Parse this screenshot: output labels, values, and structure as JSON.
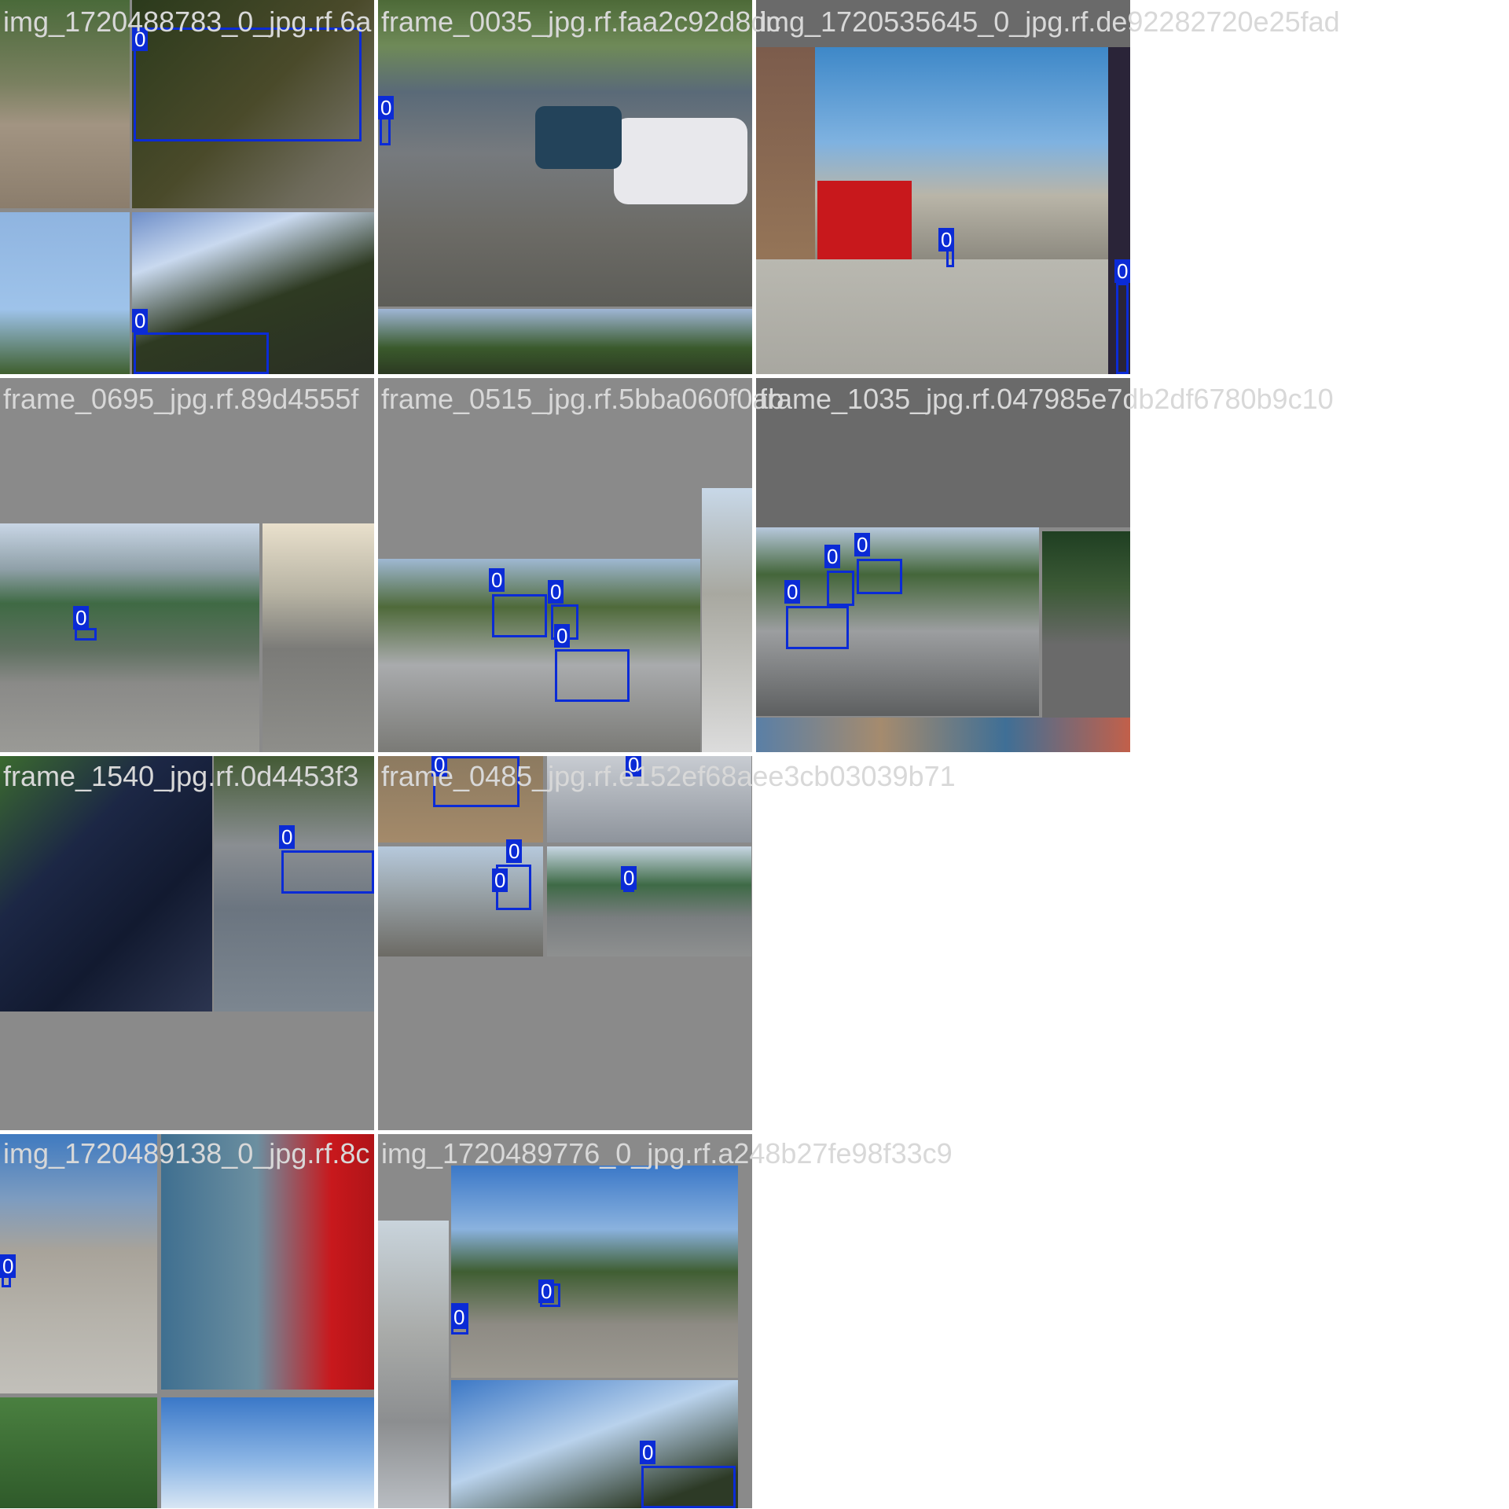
{
  "grid": {
    "captions": {
      "t0": "img_1720488783_0_jpg.rf.6a",
      "t1": "frame_0035_jpg.rf.faa2c92d8dc",
      "t2": "img_1720535645_0_jpg.rf.de92282720e25fad",
      "t3": "frame_0695_jpg.rf.89d4555f",
      "t4": "frame_0515_jpg.rf.5bba060f0ab",
      "t5": "frame_1035_jpg.rf.047985e7db2df6780b9c10",
      "t6": "frame_1540_jpg.rf.0d4453f3",
      "t7": "frame_0485_jpg.rf.e152ef68aee3cb03039b71",
      "t8": "img_1720489138_0_jpg.rf.8c",
      "t9": "img_1720489776_0_jpg.rf.a248b27fe98f33c9"
    },
    "label": "0"
  },
  "colors": {
    "box": "#0b2bd6",
    "padding": "#8a8a8a"
  }
}
